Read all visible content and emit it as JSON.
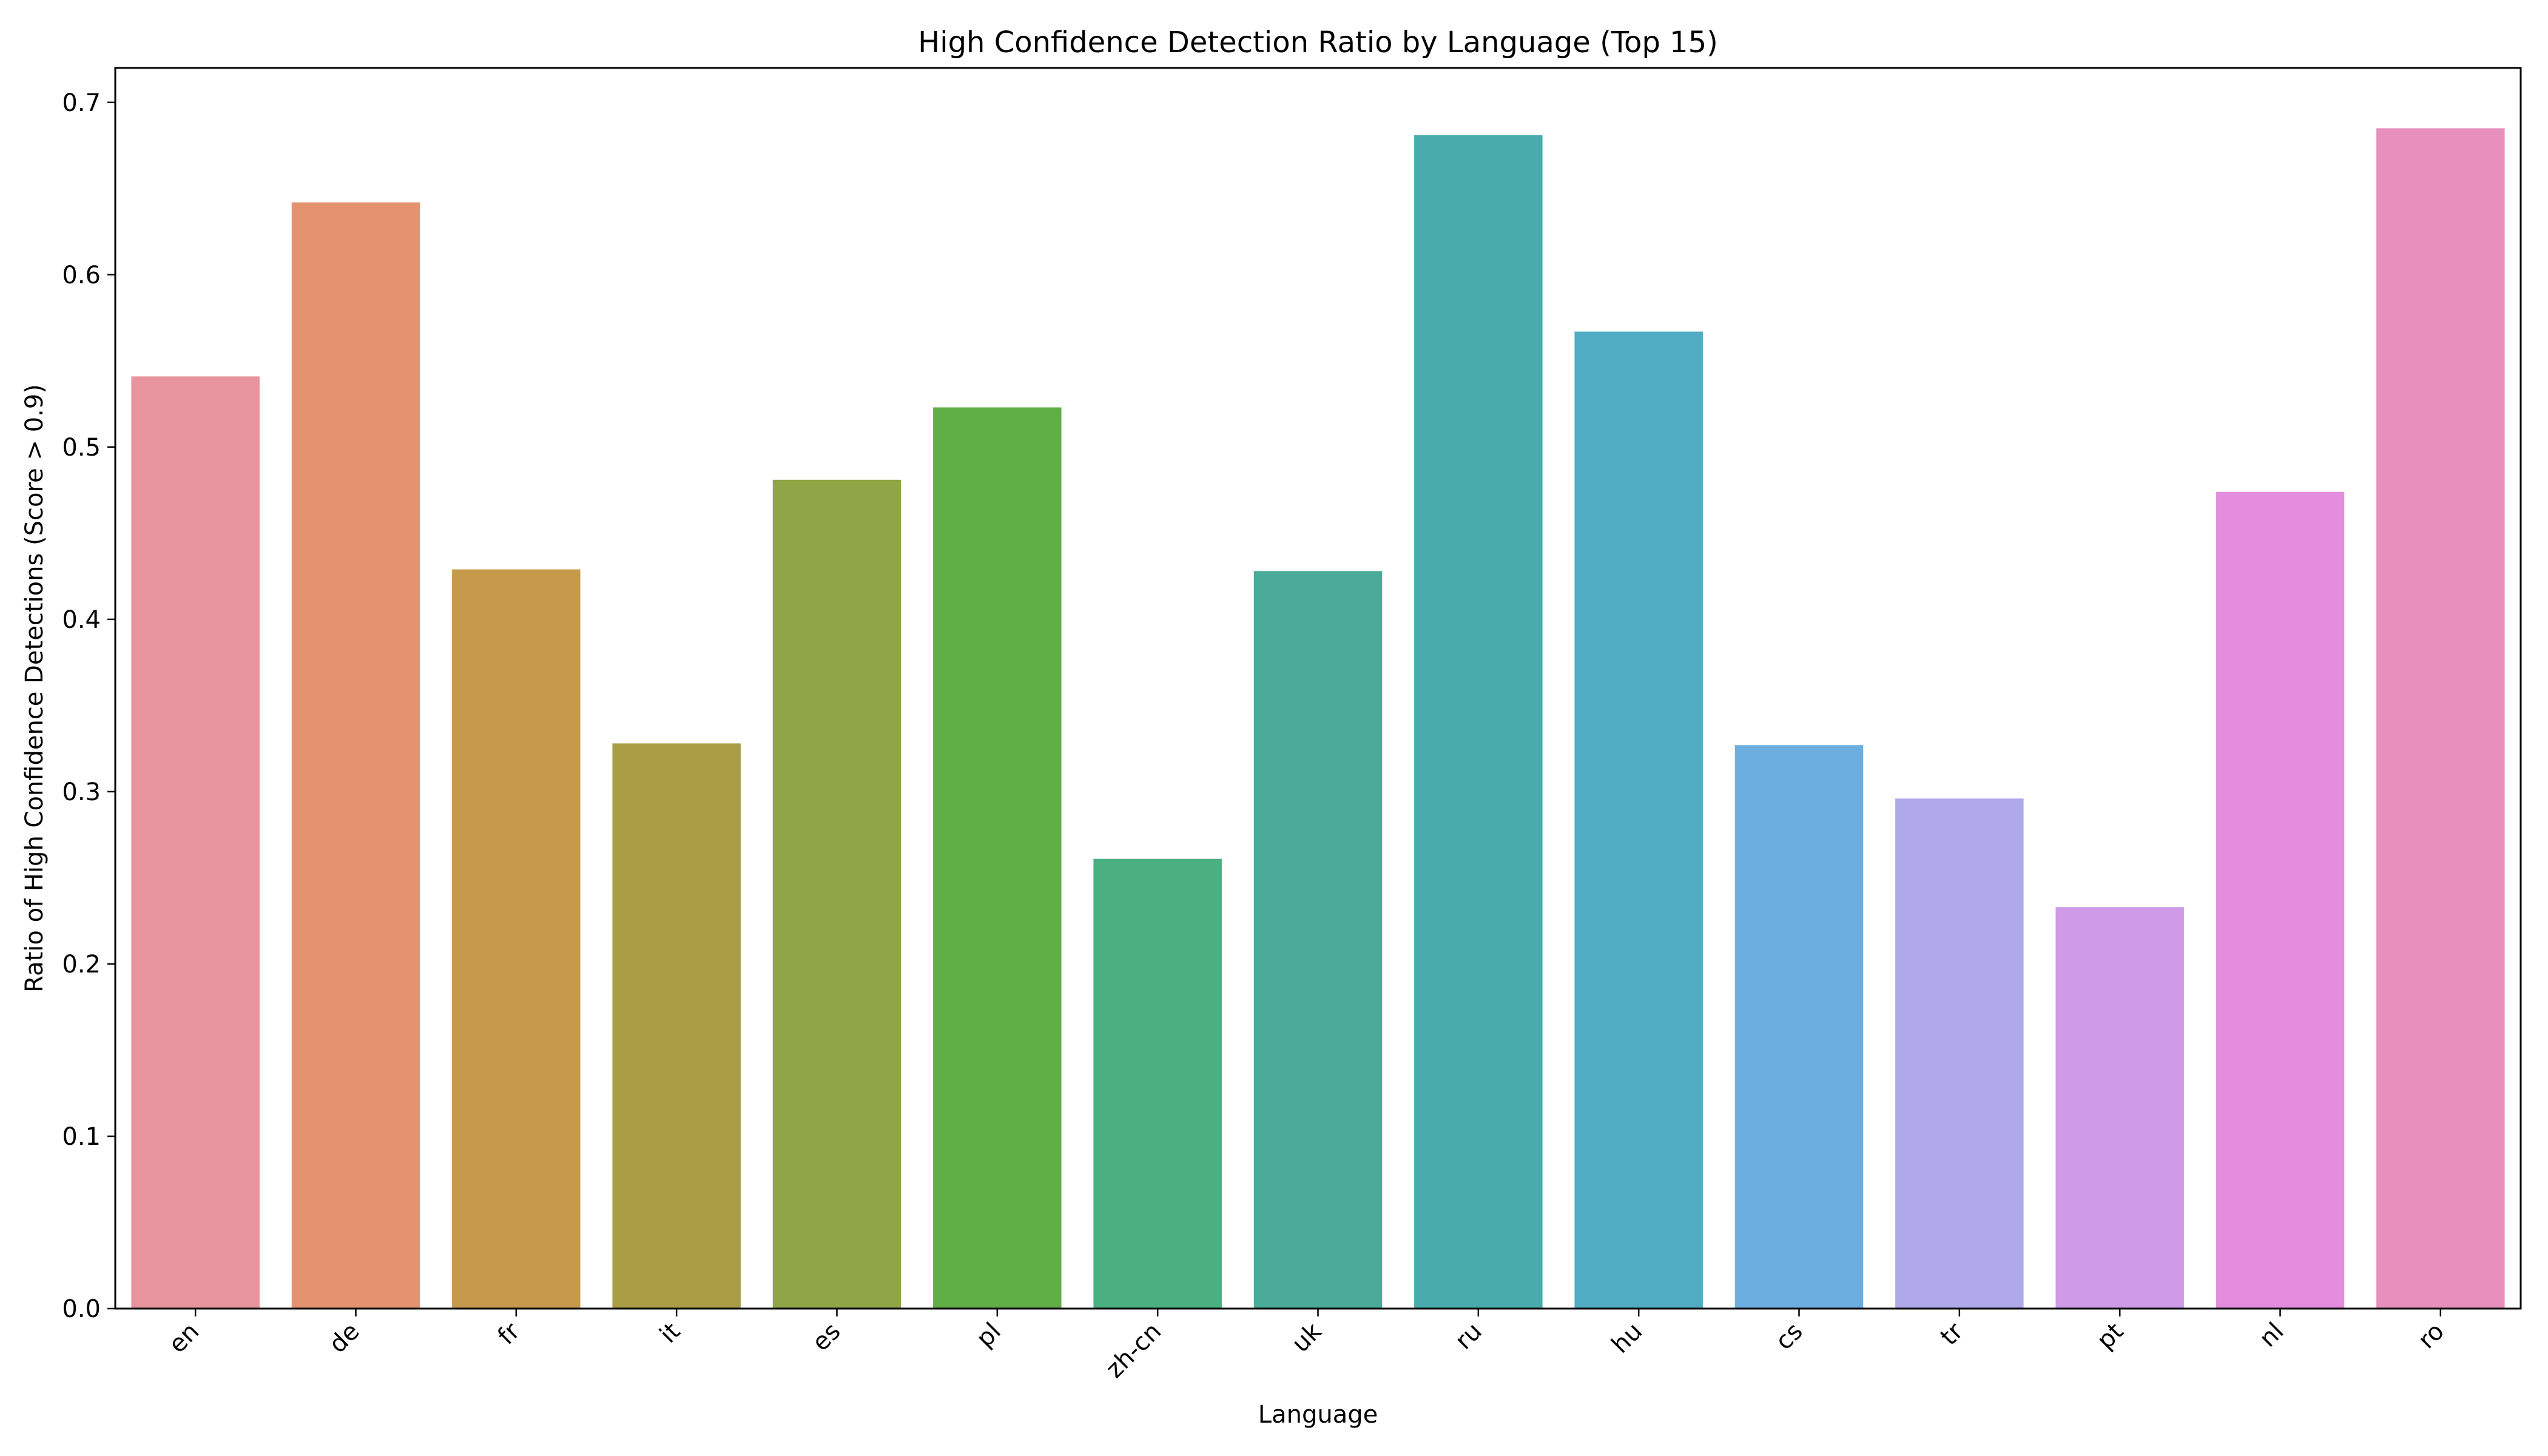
{
  "chart_data": {
    "type": "bar",
    "title": "High Confidence Detection Ratio by Language (Top 15)",
    "xlabel": "Language",
    "ylabel": "Ratio of High Confidence Detections (Score > 0.9)",
    "ylim": [
      0,
      0.72
    ],
    "yticks": [
      0.0,
      0.1,
      0.2,
      0.3,
      0.4,
      0.5,
      0.6,
      0.7
    ],
    "ytick_labels": [
      "0.0",
      "0.1",
      "0.2",
      "0.3",
      "0.4",
      "0.5",
      "0.6",
      "0.7"
    ],
    "categories": [
      "en",
      "de",
      "fr",
      "it",
      "es",
      "pl",
      "zh-cn",
      "uk",
      "ru",
      "hu",
      "cs",
      "tr",
      "pt",
      "nl",
      "ro"
    ],
    "values": [
      0.541,
      0.642,
      0.429,
      0.328,
      0.481,
      0.523,
      0.261,
      0.428,
      0.681,
      0.567,
      0.327,
      0.296,
      0.233,
      0.474,
      0.685
    ],
    "colors": [
      "#e8949f",
      "#e3946f",
      "#c6994c",
      "#a99d45",
      "#90a545",
      "#5fae46",
      "#4aaf81",
      "#4aab99",
      "#4aabad",
      "#50acc3",
      "#6daee0",
      "#afa9ea",
      "#cf9ae8",
      "#e48ddc",
      "#e78fbd"
    ],
    "grid": false,
    "legend": "none"
  }
}
